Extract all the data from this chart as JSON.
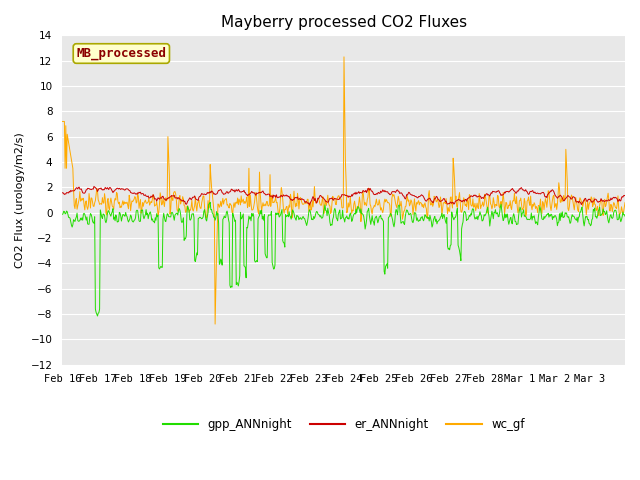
{
  "title": "Mayberry processed CO2 Fluxes",
  "ylabel": "CO2 Flux (urology/m2/s)",
  "ylim": [
    -12,
    14
  ],
  "yticks": [
    -12,
    -10,
    -8,
    -6,
    -4,
    -2,
    0,
    2,
    4,
    6,
    8,
    10,
    12,
    14
  ],
  "fig_bg_color": "#ffffff",
  "plot_bg_color": "#e8e8e8",
  "line_colors": {
    "gpp": "#22dd00",
    "er": "#cc0000",
    "wc": "#ffaa00"
  },
  "legend_labels": [
    "gpp_ANNnight",
    "er_ANNnight",
    "wc_gf"
  ],
  "watermark_text": "MB_processed",
  "watermark_color": "#8b0000",
  "watermark_bg": "#ffffcc",
  "watermark_edge": "#aaa800",
  "title_fontsize": 11,
  "label_fontsize": 8,
  "tick_fontsize": 7.5,
  "n_points": 800,
  "date_labels": [
    "Feb 16",
    "Feb 17",
    "Feb 18",
    "Feb 19",
    "Feb 20",
    "Feb 21",
    "Feb 22",
    "Feb 23",
    "Feb 24",
    "Feb 25",
    "Feb 26",
    "Feb 27",
    "Feb 28",
    "Mar 1",
    "Mar 2",
    "Mar 3"
  ],
  "grid_color": "#ffffff",
  "line_width": 0.7
}
